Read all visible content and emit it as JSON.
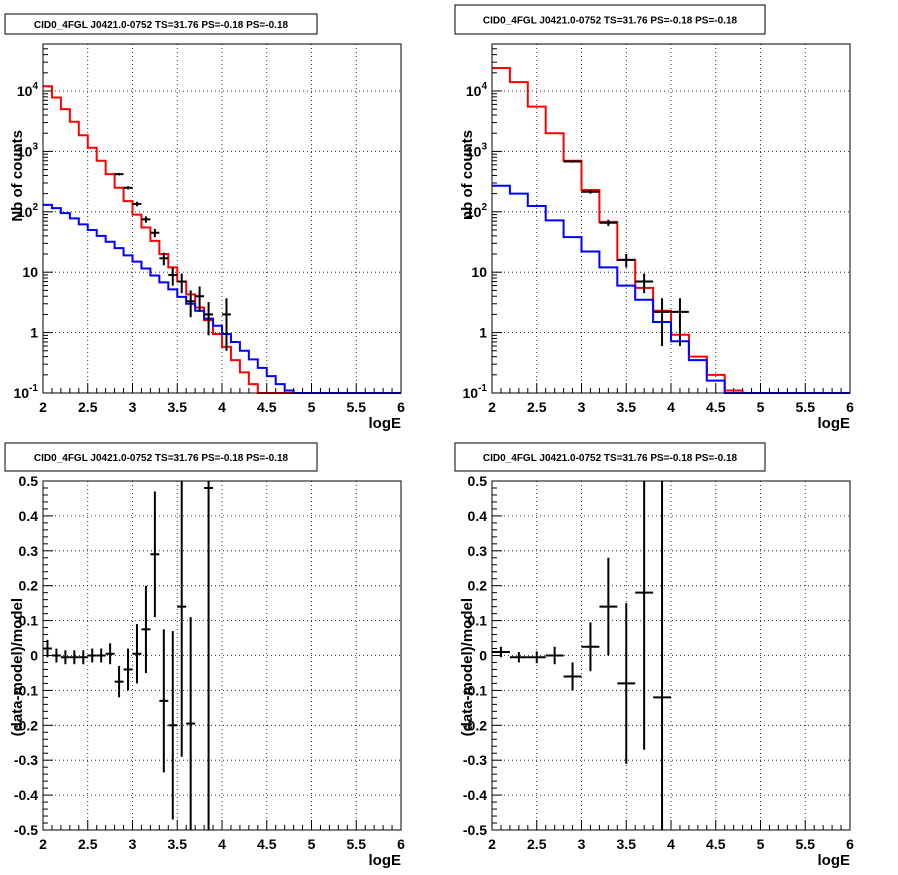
{
  "chart_data": [
    {
      "type": "line",
      "title": "CID0_4FGL J0421.0-0752 TS=31.76 PS=-0.18 PS=-0.18",
      "xlabel": "logE",
      "ylabel": "Nb of counts",
      "xlim": [
        2,
        6
      ],
      "ylim": [
        0.1,
        60000
      ],
      "yscale": "log",
      "grid": true,
      "xticks": [
        "2",
        "2.5",
        "3",
        "3.5",
        "4",
        "4.5",
        "5",
        "5.5",
        "6"
      ],
      "yticks": [
        {
          "value": 0.1,
          "base": "10",
          "exp": "-1"
        },
        {
          "value": 1,
          "label": "1"
        },
        {
          "value": 10,
          "label": "10"
        },
        {
          "value": 100,
          "base": "10",
          "exp": "2"
        },
        {
          "value": 1000,
          "base": "10",
          "exp": "3"
        },
        {
          "value": 10000,
          "base": "10",
          "exp": "4"
        }
      ],
      "bin_edges": [
        2.0,
        2.1,
        2.2,
        2.3,
        2.4,
        2.5,
        2.6,
        2.7,
        2.8,
        2.9,
        3.0,
        3.1,
        3.2,
        3.3,
        3.4,
        3.5,
        3.6,
        3.7,
        3.8,
        3.9,
        4.0,
        4.1,
        4.2,
        4.3,
        4.4,
        4.5,
        4.6,
        4.7,
        4.8,
        4.9,
        5.0,
        5.1,
        5.2,
        5.3,
        5.4,
        5.5,
        5.6,
        5.7,
        5.8,
        5.9,
        6.0
      ],
      "series": [
        {
          "color": "#ff0000",
          "style": "step",
          "values": [
            12000,
            7800,
            5000,
            3100,
            1850,
            1150,
            700,
            420,
            250,
            150,
            90,
            55,
            33,
            20,
            12,
            7,
            4.3,
            2.6,
            1.6,
            0.95,
            0.58,
            0.35,
            0.22,
            0.14,
            0.1,
            0.1,
            0.1,
            0.1,
            0.1,
            0.1,
            0.1,
            0.1,
            0.1,
            0.1,
            0.1,
            0.1,
            0.1,
            0.1,
            0.1,
            0.1
          ]
        },
        {
          "color": "#0000ff",
          "style": "step",
          "values": [
            130,
            115,
            95,
            78,
            62,
            50,
            40,
            32,
            25,
            19,
            15,
            11.5,
            8.8,
            6.8,
            5.2,
            3.9,
            3.0,
            2.3,
            1.7,
            1.3,
            0.95,
            0.7,
            0.5,
            0.36,
            0.26,
            0.19,
            0.14,
            0.11,
            0.1,
            0.1,
            0.1,
            0.1,
            0.1,
            0.1,
            0.1,
            0.1,
            0.1,
            0.1,
            0.1,
            0.1
          ]
        },
        {
          "color": "#000000",
          "style": "errorbar",
          "points": [
            {
              "x": 2.85,
              "y": 420,
              "lo": 400,
              "hi": 440
            },
            {
              "x": 2.95,
              "y": 250,
              "lo": 235,
              "hi": 265
            },
            {
              "x": 3.05,
              "y": 135,
              "lo": 123,
              "hi": 147
            },
            {
              "x": 3.15,
              "y": 75,
              "lo": 66,
              "hi": 84
            },
            {
              "x": 3.25,
              "y": 45,
              "lo": 38,
              "hi": 52
            },
            {
              "x": 3.35,
              "y": 17,
              "lo": 13,
              "hi": 21
            },
            {
              "x": 3.45,
              "y": 9,
              "lo": 6,
              "hi": 12
            },
            {
              "x": 3.55,
              "y": 7,
              "lo": 4.5,
              "hi": 9.5
            },
            {
              "x": 3.65,
              "y": 3.3,
              "lo": 1.8,
              "hi": 5
            },
            {
              "x": 3.75,
              "y": 4,
              "lo": 2.2,
              "hi": 5.8
            },
            {
              "x": 3.85,
              "y": 2,
              "lo": 0.9,
              "hi": 3.2
            },
            {
              "x": 4.05,
              "y": 2,
              "lo": 0.5,
              "hi": 3.7
            }
          ]
        }
      ]
    },
    {
      "type": "line",
      "title": "CID0_4FGL J0421.0-0752 TS=31.76 PS=-0.18 PS=-0.18",
      "xlabel": "logE",
      "ylabel": "nb of counts",
      "xlim": [
        2,
        6
      ],
      "ylim": [
        0.1,
        60000
      ],
      "yscale": "log",
      "grid": true,
      "xticks": [
        "2",
        "2.5",
        "3",
        "3.5",
        "4",
        "4.5",
        "5",
        "5.5",
        "6"
      ],
      "yticks": [
        {
          "value": 0.1,
          "base": "10",
          "exp": "-1"
        },
        {
          "value": 1,
          "label": "1"
        },
        {
          "value": 10,
          "label": "10"
        },
        {
          "value": 100,
          "base": "10",
          "exp": "2"
        },
        {
          "value": 1000,
          "base": "10",
          "exp": "3"
        },
        {
          "value": 10000,
          "base": "10",
          "exp": "4"
        }
      ],
      "bin_edges": [
        2.0,
        2.2,
        2.4,
        2.6,
        2.8,
        3.0,
        3.2,
        3.4,
        3.6,
        3.8,
        4.0,
        4.2,
        4.4,
        4.6,
        4.8,
        5.0,
        5.2,
        5.4,
        5.6,
        5.8,
        6.0
      ],
      "series": [
        {
          "color": "#ff0000",
          "style": "step",
          "values": [
            24000,
            14000,
            5500,
            2000,
            700,
            230,
            68,
            16,
            5.5,
            2.3,
            0.92,
            0.4,
            0.2,
            0.11,
            0.1,
            0.1,
            0.1,
            0.1,
            0.1,
            0.1
          ]
        },
        {
          "color": "#0000ff",
          "style": "step",
          "values": [
            270,
            200,
            125,
            72,
            38,
            22,
            12,
            6,
            3.5,
            1.5,
            0.72,
            0.35,
            0.16,
            0.1,
            0.1,
            0.1,
            0.1,
            0.1,
            0.1,
            0.1
          ]
        },
        {
          "color": "#000000",
          "style": "errorbar",
          "points": [
            {
              "x": 2.9,
              "y": 680,
              "lo": 650,
              "hi": 710
            },
            {
              "x": 3.1,
              "y": 215,
              "lo": 200,
              "hi": 230
            },
            {
              "x": 3.3,
              "y": 66,
              "lo": 58,
              "hi": 74
            },
            {
              "x": 3.5,
              "y": 16,
              "lo": 12,
              "hi": 20
            },
            {
              "x": 3.7,
              "y": 7,
              "lo": 4.5,
              "hi": 9.5
            },
            {
              "x": 3.9,
              "y": 2.2,
              "lo": 0.6,
              "hi": 3.7
            },
            {
              "x": 4.1,
              "y": 2.2,
              "lo": 0.6,
              "hi": 3.7
            }
          ]
        }
      ]
    },
    {
      "type": "scatter",
      "title": "CID0_4FGL J0421.0-0752 TS=31.76 PS=-0.18 PS=-0.18",
      "xlabel": "logE",
      "ylabel": "(data-model)/model",
      "xlim": [
        2,
        6
      ],
      "ylim": [
        -0.5,
        0.5
      ],
      "grid": true,
      "xticks": [
        "2",
        "2.5",
        "3",
        "3.5",
        "4",
        "4.5",
        "5",
        "5.5",
        "6"
      ],
      "yticks": [
        "-0.5",
        "-0.4",
        "-0.3",
        "-0.2",
        "-0.1",
        "0",
        "0.1",
        "0.2",
        "0.3",
        "0.4",
        "0.5"
      ],
      "xerr": 0.05,
      "series": [
        {
          "color": "#000000",
          "style": "errorbar",
          "points": [
            {
              "x": 2.05,
              "y": 0.02,
              "lo": -0.005,
              "hi": 0.045
            },
            {
              "x": 2.15,
              "y": 0.0,
              "lo": -0.02,
              "hi": 0.02
            },
            {
              "x": 2.25,
              "y": -0.005,
              "lo": -0.025,
              "hi": 0.015
            },
            {
              "x": 2.35,
              "y": -0.005,
              "lo": -0.025,
              "hi": 0.015
            },
            {
              "x": 2.45,
              "y": -0.005,
              "lo": -0.025,
              "hi": 0.015
            },
            {
              "x": 2.55,
              "y": 0.0,
              "lo": -0.02,
              "hi": 0.02
            },
            {
              "x": 2.65,
              "y": 0.0,
              "lo": -0.02,
              "hi": 0.02
            },
            {
              "x": 2.75,
              "y": 0.005,
              "lo": -0.025,
              "hi": 0.035
            },
            {
              "x": 2.85,
              "y": -0.075,
              "lo": -0.12,
              "hi": -0.03
            },
            {
              "x": 2.95,
              "y": -0.04,
              "lo": -0.1,
              "hi": 0.02
            },
            {
              "x": 3.05,
              "y": 0.005,
              "lo": -0.08,
              "hi": 0.09
            },
            {
              "x": 3.15,
              "y": 0.075,
              "lo": -0.05,
              "hi": 0.2
            },
            {
              "x": 3.25,
              "y": 0.29,
              "lo": 0.11,
              "hi": 0.47
            },
            {
              "x": 3.35,
              "y": -0.13,
              "lo": -0.335,
              "hi": 0.075
            },
            {
              "x": 3.45,
              "y": -0.2,
              "lo": -0.47,
              "hi": 0.07
            },
            {
              "x": 3.55,
              "y": 0.14,
              "lo": -0.29,
              "hi": 0.5
            },
            {
              "x": 3.65,
              "y": -0.195,
              "lo": -0.5,
              "hi": 0.11
            },
            {
              "x": 3.85,
              "y": 0.48,
              "lo": -0.5,
              "hi": 0.5
            }
          ]
        }
      ]
    },
    {
      "type": "scatter",
      "title": "CID0_4FGL J0421.0-0752 TS=31.76 PS=-0.18 PS=-0.18",
      "xlabel": "logE",
      "ylabel": "(data-model)/model",
      "xlim": [
        2,
        6
      ],
      "ylim": [
        -0.5,
        0.5
      ],
      "grid": true,
      "xticks": [
        "2",
        "2.5",
        "3",
        "3.5",
        "4",
        "4.5",
        "5",
        "5.5",
        "6"
      ],
      "yticks": [
        "-0.5",
        "-0.4",
        "-0.3",
        "-0.2",
        "-0.1",
        "0",
        "0.1",
        "0.2",
        "0.3",
        "0.4",
        "0.5"
      ],
      "xerr": 0.1,
      "series": [
        {
          "color": "#000000",
          "style": "errorbar",
          "points": [
            {
              "x": 2.1,
              "y": 0.01,
              "lo": -0.005,
              "hi": 0.025
            },
            {
              "x": 2.3,
              "y": -0.005,
              "lo": -0.02,
              "hi": 0.01
            },
            {
              "x": 2.5,
              "y": -0.005,
              "lo": -0.022,
              "hi": 0.012
            },
            {
              "x": 2.7,
              "y": 0.0,
              "lo": -0.025,
              "hi": 0.025
            },
            {
              "x": 2.9,
              "y": -0.06,
              "lo": -0.1,
              "hi": -0.02
            },
            {
              "x": 3.1,
              "y": 0.025,
              "lo": -0.045,
              "hi": 0.095
            },
            {
              "x": 3.3,
              "y": 0.14,
              "lo": 0.0,
              "hi": 0.28
            },
            {
              "x": 3.5,
              "y": -0.08,
              "lo": -0.31,
              "hi": 0.15
            },
            {
              "x": 3.7,
              "y": 0.18,
              "lo": -0.27,
              "hi": 0.5
            },
            {
              "x": 3.9,
              "y": -0.12,
              "lo": -0.5,
              "hi": 0.5
            }
          ]
        }
      ]
    }
  ]
}
